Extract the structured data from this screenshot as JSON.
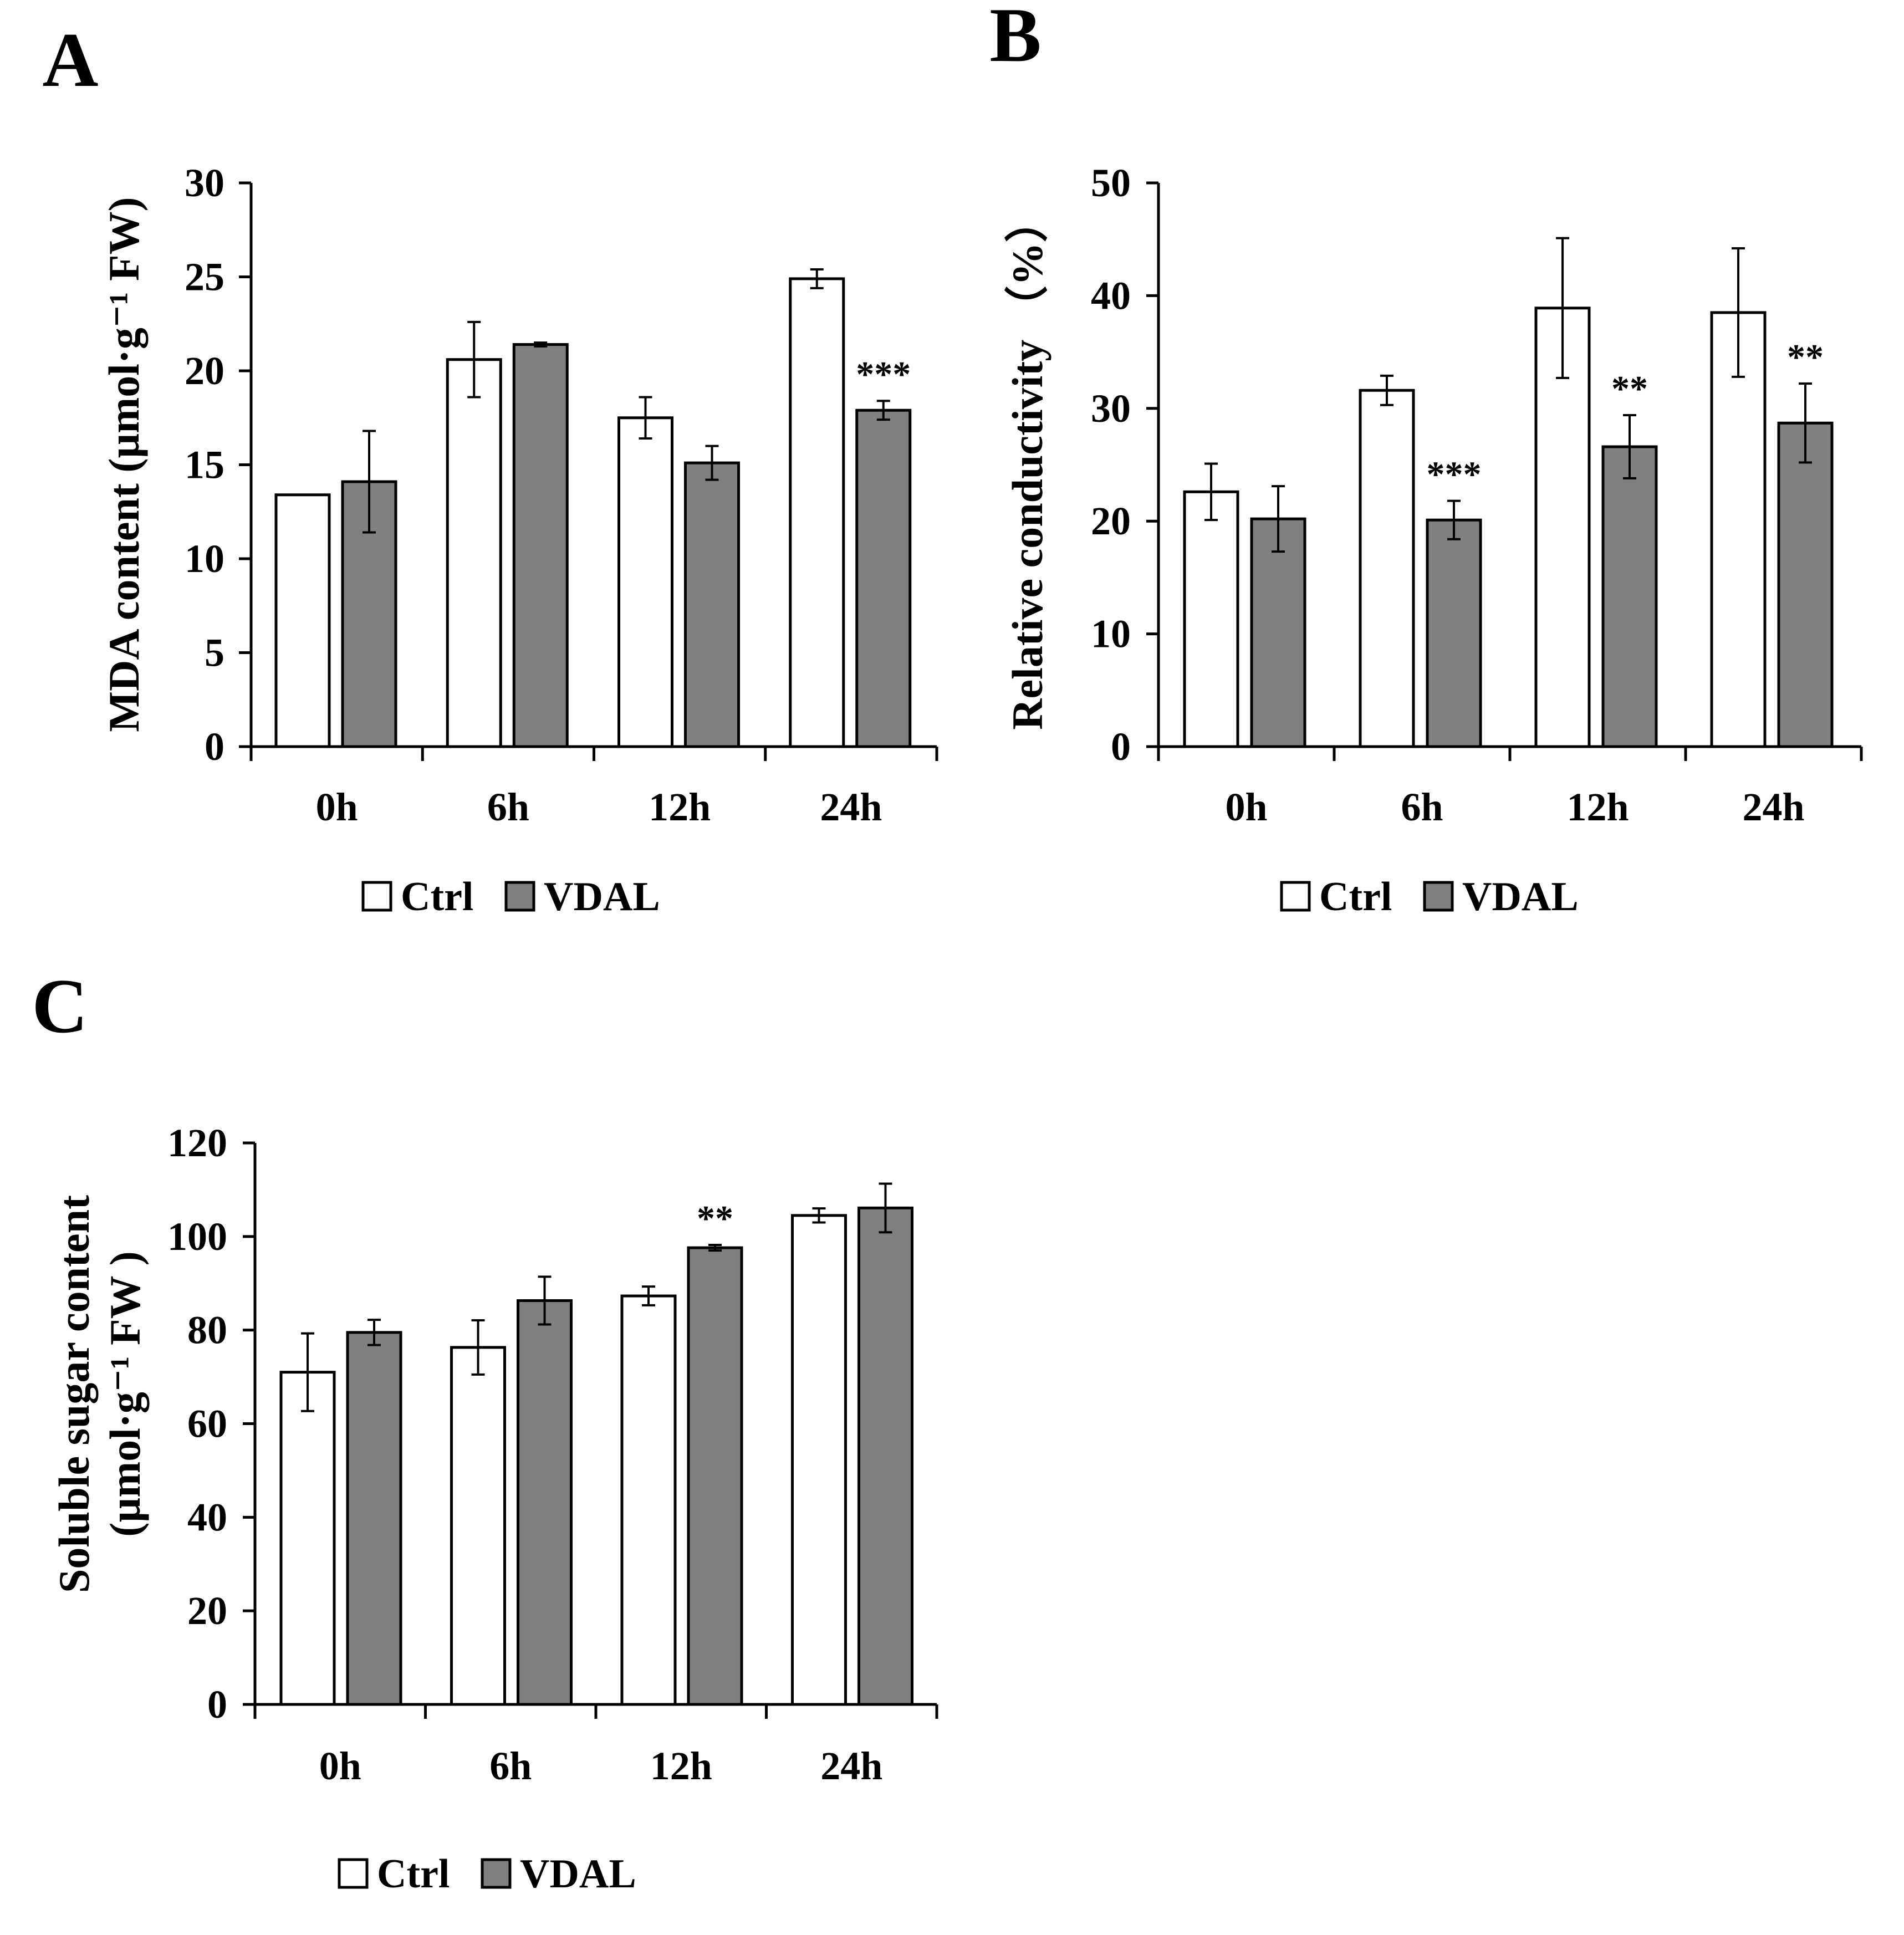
{
  "colors": {
    "ctrl": "#ffffff",
    "vdal": "#808080",
    "outline": "#000000"
  },
  "chart_data": [
    {
      "panel": "A",
      "type": "bar",
      "ylabel": "MDA content (µmol·g⁻¹ FW)",
      "ylim": [
        0,
        30
      ],
      "yticks": [
        0,
        5,
        10,
        15,
        20,
        25,
        30
      ],
      "categories": [
        "0h",
        "6h",
        "12h",
        "24h"
      ],
      "series": [
        {
          "name": "Ctrl",
          "values": [
            13.4,
            20.6,
            17.5,
            24.9
          ],
          "errors": [
            0,
            2.0,
            1.1,
            0.5
          ]
        },
        {
          "name": "VDAL",
          "values": [
            14.1,
            21.4,
            15.1,
            17.9
          ],
          "errors": [
            2.7,
            0.1,
            0.9,
            0.5
          ]
        }
      ],
      "annotations": [
        {
          "category": "24h",
          "series": "VDAL",
          "text": "***"
        }
      ],
      "legend": "bottom-center"
    },
    {
      "panel": "B",
      "type": "bar",
      "ylabel": "Relative conductivity （%）",
      "ylim": [
        0,
        50
      ],
      "yticks": [
        0,
        10,
        20,
        30,
        40,
        50
      ],
      "categories": [
        "0h",
        "6h",
        "12h",
        "24h"
      ],
      "series": [
        {
          "name": "Ctrl",
          "values": [
            22.6,
            31.6,
            38.9,
            38.5
          ],
          "errors": [
            2.5,
            1.3,
            6.2,
            5.7
          ]
        },
        {
          "name": "VDAL",
          "values": [
            20.2,
            20.1,
            26.6,
            28.7
          ],
          "errors": [
            2.9,
            1.7,
            2.8,
            3.5
          ]
        }
      ],
      "annotations": [
        {
          "category": "6h",
          "series": "VDAL",
          "text": "***"
        },
        {
          "category": "12h",
          "series": "VDAL",
          "text": "**"
        },
        {
          "category": "24h",
          "series": "VDAL",
          "text": "**"
        }
      ],
      "legend": "bottom-center"
    },
    {
      "panel": "C",
      "type": "bar",
      "ylabel": [
        "Soluble sugar content",
        "(µmol·g⁻¹ FW )"
      ],
      "ylim": [
        0,
        120
      ],
      "yticks": [
        0,
        20,
        40,
        60,
        80,
        100,
        120
      ],
      "categories": [
        "0h",
        "6h",
        "12h",
        "24h"
      ],
      "series": [
        {
          "name": "Ctrl",
          "values": [
            71,
            76.3,
            87.3,
            104.5
          ],
          "errors": [
            8.3,
            5.8,
            2.0,
            1.5
          ]
        },
        {
          "name": "VDAL",
          "values": [
            79.5,
            86.3,
            97.6,
            106.1
          ],
          "errors": [
            2.7,
            5.1,
            0.6,
            5.2
          ]
        }
      ],
      "annotations": [
        {
          "category": "12h",
          "series": "VDAL",
          "text": "**"
        }
      ],
      "legend": "bottom-center"
    }
  ]
}
